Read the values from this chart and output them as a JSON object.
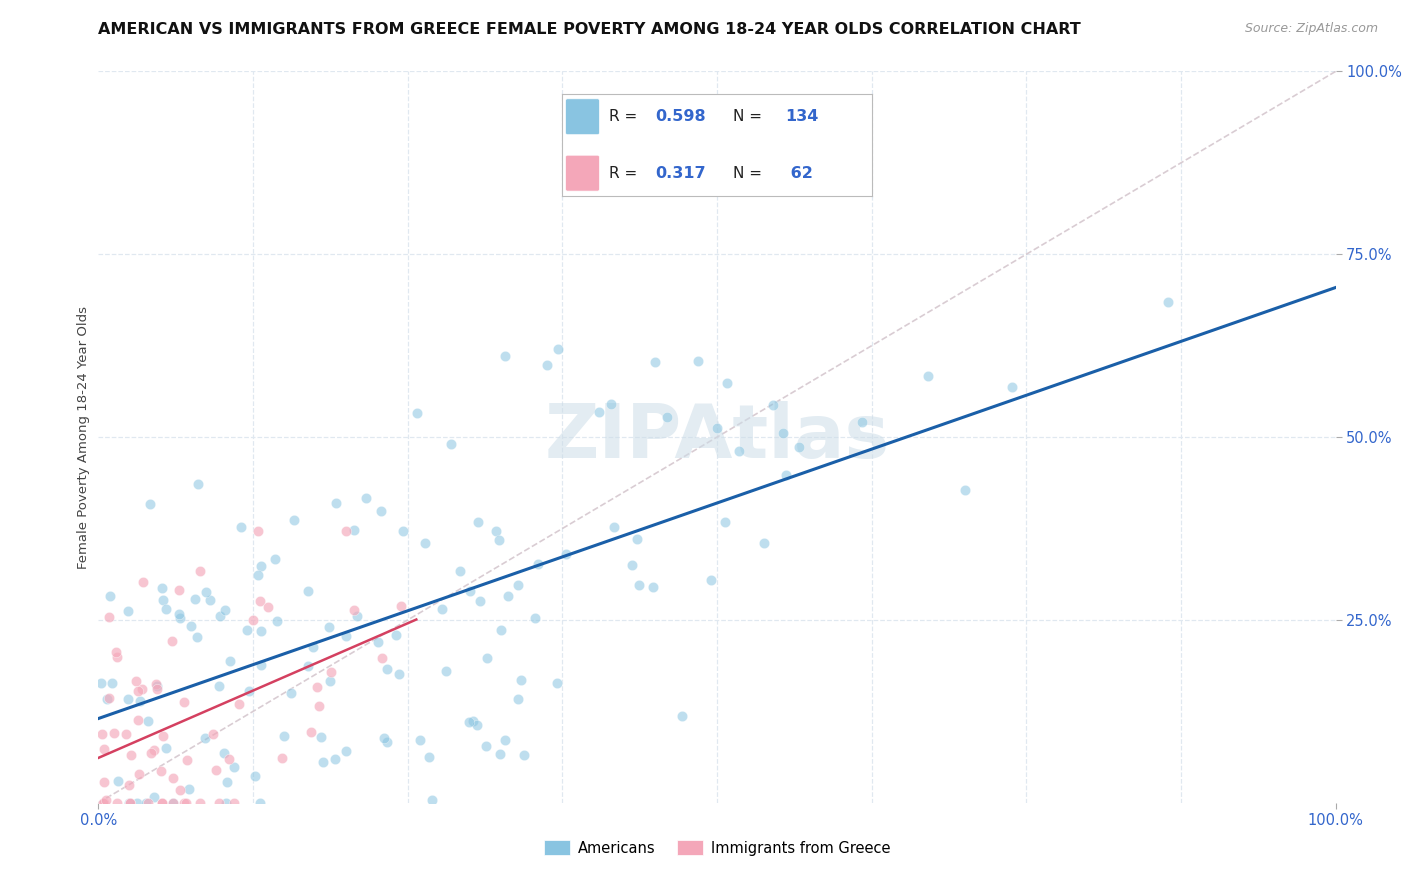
{
  "title": "AMERICAN VS IMMIGRANTS FROM GREECE FEMALE POVERTY AMONG 18-24 YEAR OLDS CORRELATION CHART",
  "source": "Source: ZipAtlas.com",
  "ylabel": "Female Poverty Among 18-24 Year Olds",
  "background_color": "#ffffff",
  "grid_color": "#e0e8f0",
  "americans_color": "#89c4e1",
  "greece_color": "#f4a7b9",
  "regression_american_color": "#1a5fa8",
  "regression_greece_color": "#d44060",
  "diagonal_color": "#d0c0c8",
  "title_fontsize": 11.5,
  "source_fontsize": 9,
  "R_american": 0.598,
  "N_american": 134,
  "R_greece": 0.317,
  "N_greece": 62,
  "watermark_color": "#ccdde8",
  "watermark_alpha": 0.55
}
